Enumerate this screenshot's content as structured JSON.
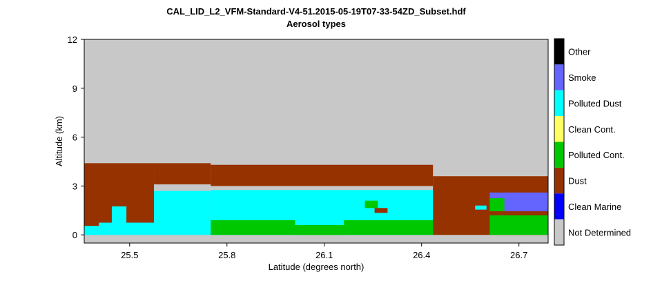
{
  "chart_data": {
    "type": "heatmap",
    "title": "CAL_LID_L2_VFM-Standard-V4-51.2015-05-19T07-33-54ZD_Subset.hdf",
    "subtitle": "Aerosol types",
    "xlabel": "Latitude (degrees north)",
    "ylabel": "Altitude (km)",
    "xlim": [
      25.36,
      26.79
    ],
    "ylim": [
      -0.5,
      12
    ],
    "xticks": [
      25.5,
      25.8,
      26.1,
      26.4,
      26.7
    ],
    "xtick_labels": [
      "25.5",
      "25.8",
      "26.1",
      "26.4",
      "26.7"
    ],
    "yticks": [
      0,
      3,
      6,
      9,
      12
    ],
    "ytick_labels": [
      "0",
      "3",
      "6",
      "9",
      "12"
    ],
    "legend_position": "right",
    "categories": [
      {
        "name": "Other",
        "color": "#000000"
      },
      {
        "name": "Smoke",
        "color": "#6464ff"
      },
      {
        "name": "Polluted Dust",
        "color": "#00ffff"
      },
      {
        "name": "Clean Cont.",
        "color": "#ffff64"
      },
      {
        "name": "Polluted Cont.",
        "color": "#00c800"
      },
      {
        "name": "Dust",
        "color": "#963200"
      },
      {
        "name": "Clean Marine",
        "color": "#0000ff"
      },
      {
        "name": "Not Determined",
        "color": "#c8c8c8"
      }
    ],
    "background_category": "Not Determined",
    "regions": [
      {
        "category": "Dust",
        "x": [
          25.36,
          25.575
        ],
        "y": [
          0.5,
          4.4
        ]
      },
      {
        "category": "Dust",
        "x": [
          25.575,
          25.75
        ],
        "y": [
          3.1,
          4.4
        ]
      },
      {
        "category": "Polluted Dust",
        "x": [
          25.36,
          25.405
        ],
        "y": [
          0.0,
          0.55
        ]
      },
      {
        "category": "Polluted Dust",
        "x": [
          25.405,
          25.575
        ],
        "y": [
          0.0,
          0.75
        ]
      },
      {
        "category": "Polluted Dust",
        "x": [
          25.445,
          25.49
        ],
        "y": [
          0.75,
          1.75
        ]
      },
      {
        "category": "Polluted Dust",
        "x": [
          25.575,
          25.75
        ],
        "y": [
          0.0,
          2.7
        ]
      },
      {
        "category": "Dust",
        "x": [
          25.75,
          26.435
        ],
        "y": [
          3.0,
          4.3
        ]
      },
      {
        "category": "Polluted Dust",
        "x": [
          25.75,
          26.435
        ],
        "y": [
          0.0,
          2.75
        ]
      },
      {
        "category": "Polluted Cont.",
        "x": [
          25.75,
          26.435
        ],
        "y": [
          0.0,
          0.9
        ]
      },
      {
        "category": "Polluted Dust",
        "x": [
          26.01,
          26.16
        ],
        "y": [
          0.6,
          0.95
        ]
      },
      {
        "category": "Polluted Cont.",
        "x": [
          26.01,
          26.16
        ],
        "y": [
          0.0,
          0.6
        ]
      },
      {
        "category": "Polluted Cont.",
        "x": [
          26.225,
          26.265
        ],
        "y": [
          1.65,
          2.1
        ]
      },
      {
        "category": "Dust",
        "x": [
          26.255,
          26.295
        ],
        "y": [
          1.35,
          1.65
        ]
      },
      {
        "category": "Dust",
        "x": [
          26.435,
          26.79
        ],
        "y": [
          0.0,
          3.6
        ]
      },
      {
        "category": "Polluted Dust",
        "x": [
          26.565,
          26.6
        ],
        "y": [
          1.55,
          1.8
        ]
      },
      {
        "category": "Smoke",
        "x": [
          26.61,
          26.79
        ],
        "y": [
          1.45,
          2.6
        ]
      },
      {
        "category": "Polluted Cont.",
        "x": [
          26.61,
          26.655
        ],
        "y": [
          1.45,
          2.25
        ]
      },
      {
        "category": "Polluted Cont.",
        "x": [
          26.61,
          26.79
        ],
        "y": [
          0.0,
          1.2
        ]
      }
    ]
  }
}
